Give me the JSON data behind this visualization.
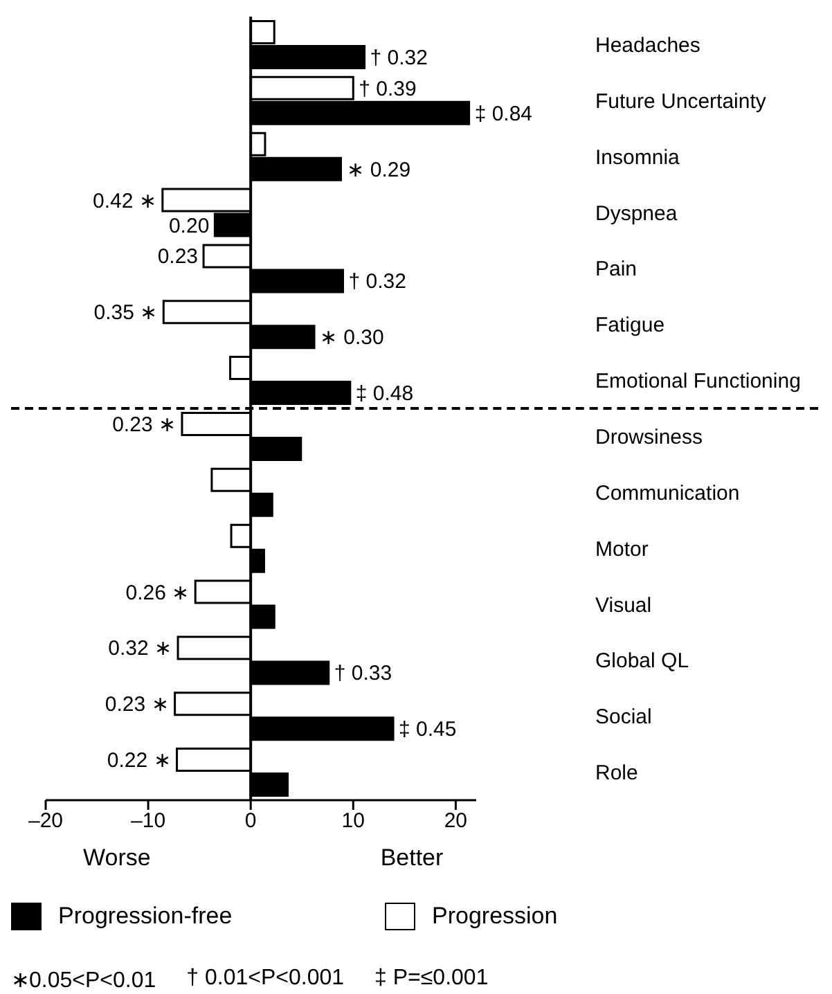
{
  "chart_data": {
    "type": "bar",
    "orientation": "horizontal",
    "categories": [
      "Headaches",
      "Future Uncertainty",
      "Insomnia",
      "Dyspnea",
      "Pain",
      "Fatigue",
      "Emotional Functioning",
      "Drowsiness",
      "Communication",
      "Motor",
      "Visual",
      "Global QL",
      "Social",
      "Role"
    ],
    "series": [
      {
        "name": "Progression",
        "color": "#ffffff",
        "values": [
          2.3,
          10.0,
          1.4,
          -8.6,
          -4.6,
          -8.5,
          -2.0,
          -6.7,
          -3.8,
          -1.9,
          -5.4,
          -7.1,
          -7.4,
          -7.2
        ]
      },
      {
        "name": "Progression-free",
        "color": "#000000",
        "values": [
          11.1,
          21.3,
          8.8,
          -3.5,
          9.0,
          6.2,
          9.7,
          4.9,
          2.1,
          1.3,
          2.3,
          7.6,
          13.9,
          3.6
        ]
      }
    ],
    "xlim": [
      -20,
      22
    ],
    "xticks": [
      {
        "value": -20,
        "label": "–20"
      },
      {
        "value": -10,
        "label": "–10"
      },
      0,
      10,
      20
    ],
    "legend": "bottom",
    "grid": false,
    "ref_lines": [
      {
        "axis": "y",
        "value": "Emotional Functioning",
        "line_style": "dashed",
        "color": "#000000"
      }
    ],
    "annotations": [
      "Worse",
      "Better",
      "∗0.05<P<0.01",
      "† 0.01<P<0.001",
      "‡ P=≤0.001",
      {
        "text": "† 0.32",
        "x": 11.1,
        "y": "Headaches"
      },
      {
        "text": "† 0.39",
        "x": 10.0,
        "y": "Future Uncertainty"
      },
      {
        "text": "‡ 0.84",
        "x": 21.3,
        "y": "Future Uncertainty"
      },
      {
        "text": "∗ 0.29",
        "x": 8.8,
        "y": "Insomnia"
      },
      {
        "text": "0.42 ∗",
        "x": -8.6,
        "y": "Dyspnea"
      },
      {
        "text": "0.20",
        "x": -3.5,
        "y": "Dyspnea"
      },
      {
        "text": "0.23",
        "x": -4.6,
        "y": "Pain"
      },
      {
        "text": "† 0.32",
        "x": 9.0,
        "y": "Pain"
      },
      {
        "text": "0.35 ∗",
        "x": -8.5,
        "y": "Fatigue"
      },
      {
        "text": "∗ 0.30",
        "x": 6.2,
        "y": "Fatigue"
      },
      {
        "text": "‡ 0.48",
        "x": 9.7,
        "y": "Emotional Functioning"
      },
      {
        "text": "0.23 ∗",
        "x": -6.7,
        "y": "Drowsiness"
      },
      {
        "text": "0.26 ∗",
        "x": -5.4,
        "y": "Visual"
      },
      {
        "text": "0.32 ∗",
        "x": -7.1,
        "y": "Global QL"
      },
      {
        "text": "† 0.33",
        "x": 7.6,
        "y": "Global QL"
      },
      {
        "text": "0.23 ∗",
        "x": -7.4,
        "y": "Social"
      },
      {
        "text": "‡ 0.45",
        "x": 13.9,
        "y": "Social"
      },
      {
        "text": "0.22 ∗",
        "x": -7.2,
        "y": "Role"
      }
    ]
  }
}
